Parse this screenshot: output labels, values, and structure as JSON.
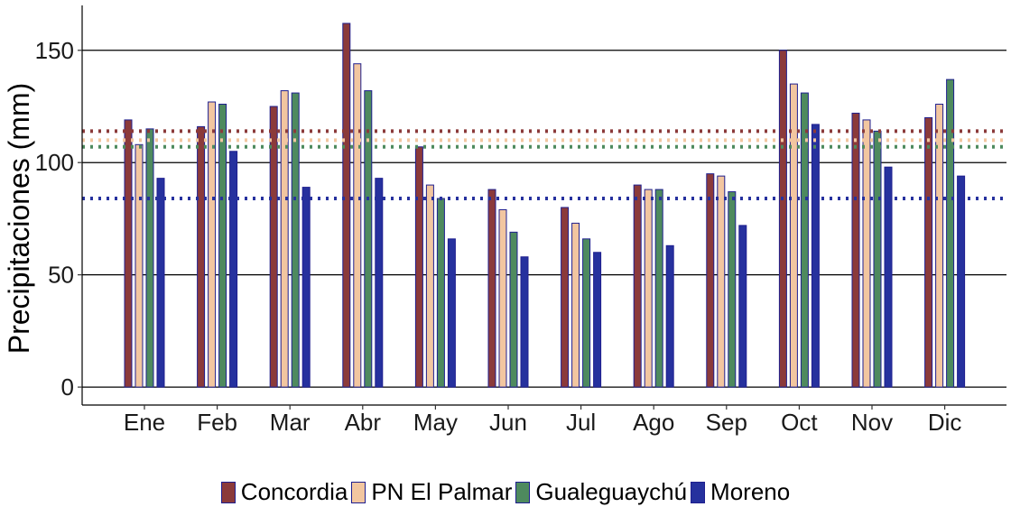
{
  "chart_data": {
    "type": "bar",
    "categories": [
      "Ene",
      "Feb",
      "Mar",
      "Abr",
      "May",
      "Jun",
      "Jul",
      "Ago",
      "Sep",
      "Oct",
      "Nov",
      "Dic"
    ],
    "series": [
      {
        "name": "Concordia",
        "color": "#8b3a3a",
        "values": [
          119,
          116,
          125,
          162,
          107,
          88,
          80,
          90,
          95,
          150,
          122,
          120
        ],
        "mean": 114
      },
      {
        "name": "PN El Palmar",
        "color": "#f2c6a0",
        "values": [
          108,
          127,
          132,
          144,
          90,
          79,
          73,
          88,
          94,
          135,
          119,
          126
        ],
        "mean": 110
      },
      {
        "name": "Gualeguaychú",
        "color": "#4e8a5e",
        "values": [
          115,
          126,
          131,
          132,
          84,
          69,
          66,
          88,
          87,
          131,
          114,
          137
        ],
        "mean": 107
      },
      {
        "name": "Moreno",
        "color": "#26319e",
        "values": [
          93,
          105,
          89,
          93,
          66,
          58,
          60,
          63,
          72,
          117,
          98,
          94
        ],
        "mean": 84
      }
    ],
    "ylabel": "Precipitaciones (mm)",
    "xlabel": "",
    "ylim": [
      -8,
      170
    ],
    "yticks": [
      0,
      50,
      100,
      150
    ],
    "grid": "horizontal at major y ticks",
    "legend_position": "bottom",
    "bar_outline_color": "#1f1f8f"
  }
}
